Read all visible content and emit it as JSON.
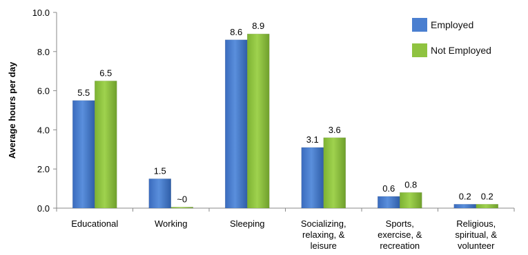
{
  "chart_data": {
    "type": "bar",
    "ylabel": "Average hours per day",
    "ylim": [
      0,
      10
    ],
    "yticks": [
      "0.0",
      "2.0",
      "4.0",
      "6.0",
      "8.0",
      "10.0"
    ],
    "categories": [
      [
        "Educational"
      ],
      [
        "Working"
      ],
      [
        "Sleeping"
      ],
      [
        "Socializing,",
        "relaxing, &",
        "leisure"
      ],
      [
        "Sports,",
        "exercise, &",
        "recreation"
      ],
      [
        "Religious,",
        "spiritual, &",
        "volunteer"
      ]
    ],
    "series": [
      {
        "name": "Employed",
        "color": "#4a7fd0",
        "values": [
          5.5,
          1.5,
          8.6,
          3.1,
          0.6,
          0.2
        ],
        "labels": [
          "5.5",
          "1.5",
          "8.6",
          "3.1",
          "0.6",
          "0.2"
        ]
      },
      {
        "name": "Not Employed",
        "color": "#8fc340",
        "values": [
          6.5,
          0.0,
          8.9,
          3.6,
          0.8,
          0.2
        ],
        "labels": [
          "6.5",
          "~0",
          "8.9",
          "3.6",
          "0.8",
          "0.2"
        ]
      }
    ],
    "legend_position": "top-right",
    "grid": false
  }
}
